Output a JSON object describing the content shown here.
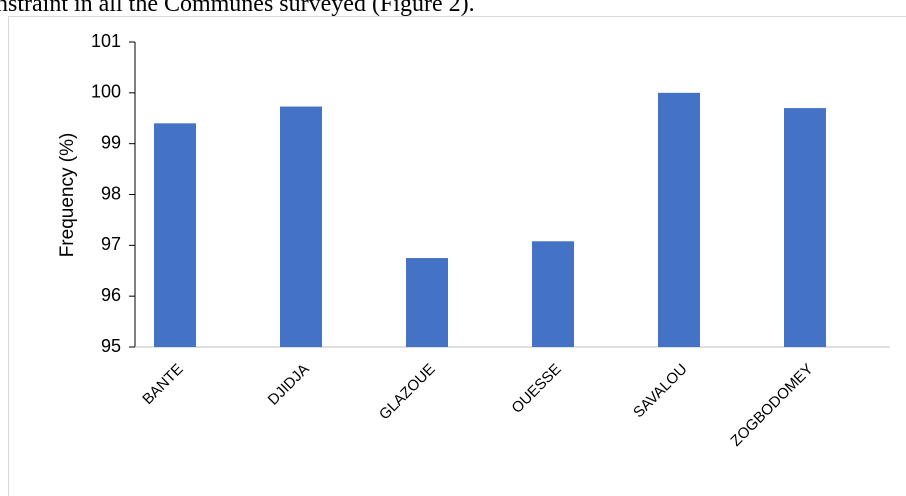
{
  "text_above": "nstraint in all the Communes surveyed (Figure 2).",
  "chart_data": {
    "type": "bar",
    "y_label": "Frequency (%)",
    "categories": [
      "BANTE",
      "DJIDJA",
      "GLAZOUE",
      "OUESSE",
      "SAVALOU",
      "ZOGBODOMEY"
    ],
    "values": [
      99.4,
      99.73,
      96.75,
      97.08,
      100,
      99.7
    ],
    "color": "#4472c4",
    "ylim": [
      95,
      101
    ],
    "yticks": [
      95,
      96,
      97,
      98,
      99,
      100,
      101
    ],
    "grid": false
  }
}
